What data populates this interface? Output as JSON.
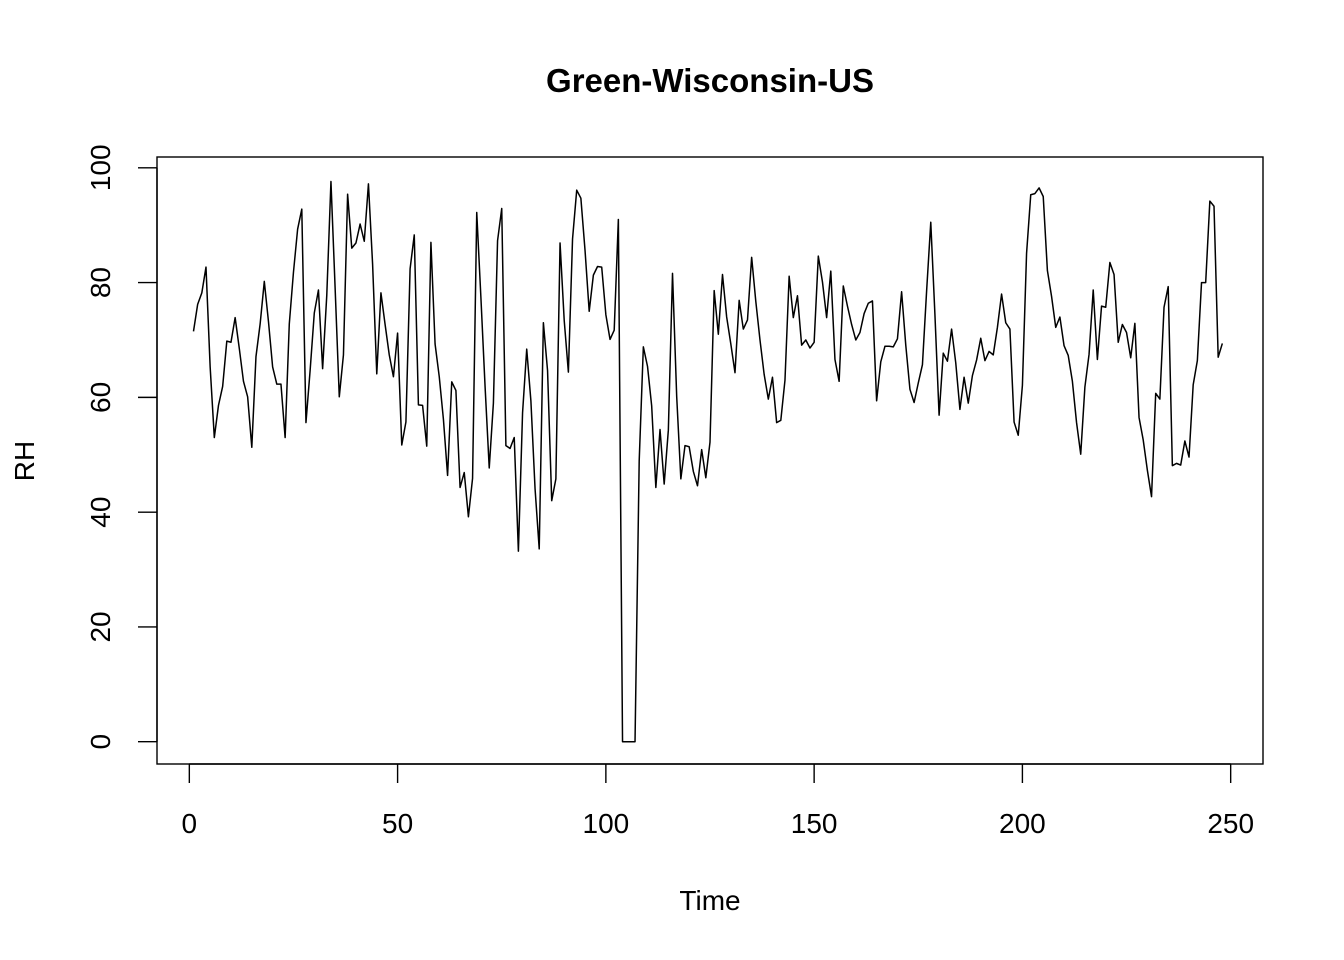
{
  "chart_data": {
    "type": "line",
    "title": "Green-Wisconsin-US",
    "xlabel": "Time",
    "ylabel": "RH",
    "xlim": [
      -7.76,
      257.76
    ],
    "ylim": [
      -3.88,
      101.88
    ],
    "x_ticks": [
      0,
      50,
      100,
      150,
      200,
      250
    ],
    "y_ticks": [
      0,
      20,
      40,
      60,
      80,
      100
    ],
    "grid": false,
    "legend": "none",
    "line_color": "#000000",
    "series": [
      {
        "x_start": 1,
        "values": [
          71.5,
          76.2,
          78.2,
          82.7,
          65.3,
          53.0,
          58.6,
          61.9,
          69.8,
          69.6,
          73.9,
          68.5,
          62.8,
          60.1,
          51.3,
          67.1,
          72.8,
          80.2,
          73.2,
          65.3,
          62.3,
          62.3,
          53.0,
          72.8,
          81.8,
          89.3,
          92.8,
          55.6,
          64.7,
          74.7,
          78.7,
          65.0,
          77.8,
          97.6,
          79.1,
          60.1,
          67.4,
          95.4,
          86.0,
          86.9,
          90.2,
          87.2,
          97.2,
          83.2,
          64.1,
          78.2,
          72.7,
          67.4,
          63.6,
          71.2,
          51.7,
          55.7,
          82.4,
          88.3,
          58.7,
          58.6,
          51.5,
          87.0,
          69.3,
          63.6,
          56.2,
          46.4,
          62.7,
          61.2,
          44.3,
          46.9,
          39.2,
          45.9,
          92.2,
          77.4,
          61.9,
          47.7,
          59.0,
          87.3,
          92.9,
          51.6,
          51.1,
          53.0,
          33.2,
          57.3,
          68.4,
          59.4,
          44.1,
          33.6,
          73.0,
          64.7,
          42.0,
          45.8,
          86.9,
          73.4,
          64.4,
          87.6,
          96.1,
          94.7,
          85.6,
          75.0,
          81.3,
          82.8,
          82.7,
          74.4,
          70.1,
          71.7,
          91.0,
          0,
          0,
          0,
          0,
          48.9,
          68.8,
          65.4,
          58.5,
          44.3,
          54.4,
          44.9,
          54.3,
          81.6,
          60.2,
          45.8,
          51.6,
          51.4,
          47.1,
          44.6,
          50.9,
          46.0,
          52.2,
          78.6,
          71.0,
          81.4,
          74.0,
          69.3,
          64.3,
          76.9,
          71.9,
          73.5,
          84.4,
          76.7,
          70.0,
          64.0,
          59.7,
          63.5,
          55.6,
          56.0,
          63.0,
          81.1,
          73.9,
          77.7,
          69.1,
          70.0,
          68.6,
          69.6,
          84.6,
          80.1,
          73.9,
          82.0,
          66.6,
          62.8,
          79.4,
          75.9,
          72.7,
          70.0,
          71.3,
          74.6,
          76.4,
          76.8,
          59.4,
          66.2,
          68.9,
          68.9,
          68.8,
          70.2,
          78.4,
          69.1,
          61.4,
          59.1,
          62.5,
          65.7,
          78.5,
          90.5,
          74.4,
          56.9,
          67.7,
          66.3,
          71.9,
          66.0,
          57.9,
          63.5,
          59.0,
          63.8,
          66.5,
          70.3,
          66.4,
          68.0,
          67.4,
          72.2,
          78.0,
          73.0,
          71.9,
          55.7,
          53.4,
          62.1,
          85.1,
          95.3,
          95.5,
          96.5,
          95.0,
          82.1,
          77.6,
          72.2,
          74.0,
          69.0,
          67.3,
          62.8,
          55.6,
          50.1,
          61.8,
          67.5,
          78.7,
          66.6,
          75.9,
          75.7,
          83.5,
          81.4,
          69.6,
          72.7,
          71.3,
          66.9,
          72.9,
          56.5,
          52.6,
          47.3,
          42.7,
          60.7,
          59.7,
          75.7,
          79.3,
          48.1,
          48.5,
          48.2,
          52.4,
          49.6,
          62.2,
          66.4,
          80.0,
          80.0,
          94.2,
          93.3,
          67.0,
          69.4
        ]
      }
    ]
  }
}
